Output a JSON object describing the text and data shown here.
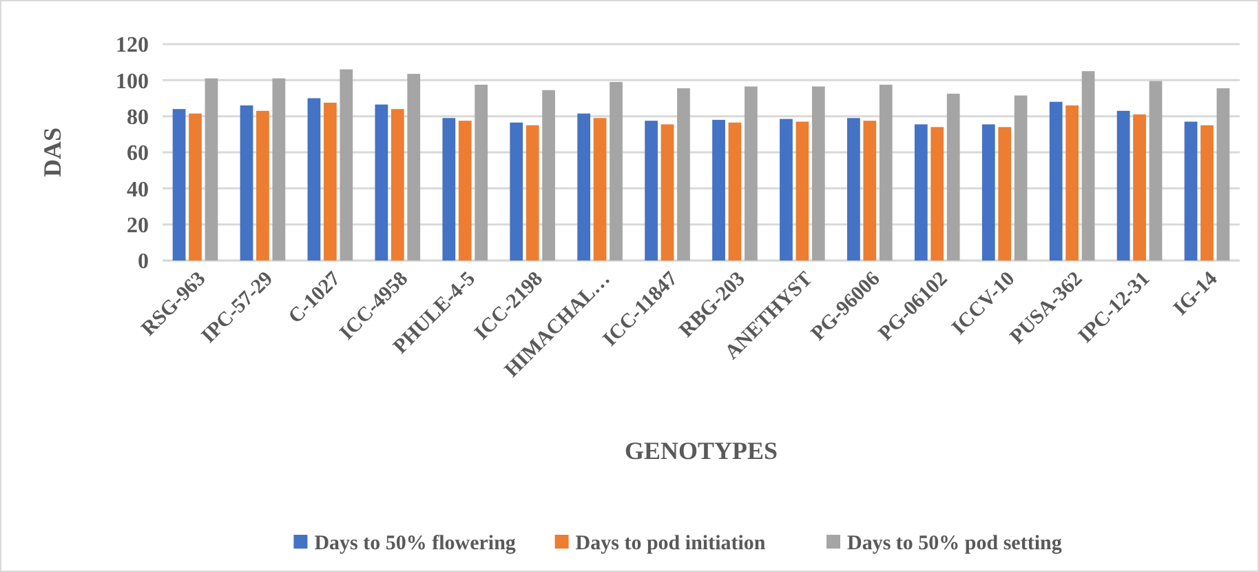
{
  "chart_data": {
    "type": "bar",
    "xlabel": "GENOTYPES",
    "ylabel": "DAS",
    "categories": [
      "RSG-963",
      "IPC-57-29",
      "C-1027",
      "ICC-4958",
      "PHULE-4-5",
      "ICC-2198",
      "HIMACHAL…",
      "ICC-11847",
      "RBG-203",
      "ANETHYST",
      "PG-96006",
      "PG-06102",
      "ICCV-10",
      "PUSA-362",
      "IPC-12-31",
      "IG-14"
    ],
    "series": [
      {
        "name": "Days to 50% flowering",
        "color": "#4472c4",
        "values": [
          84,
          86,
          90,
          86.5,
          79,
          76.5,
          81.5,
          77.5,
          78,
          78.5,
          79,
          75.5,
          75.5,
          88,
          83,
          77
        ]
      },
      {
        "name": "Days to pod initiation",
        "color": "#ed7d31",
        "values": [
          81.5,
          83,
          87.5,
          84,
          77.5,
          75,
          79,
          75.5,
          76.5,
          77,
          77.5,
          74,
          74,
          86,
          81,
          75
        ]
      },
      {
        "name": "Days to 50% pod setting",
        "color": "#a5a5a5",
        "values": [
          101,
          101,
          106,
          103.5,
          97.5,
          94.5,
          99,
          95.5,
          96.5,
          96.5,
          97.5,
          92.5,
          91.5,
          105,
          99.5,
          95.5
        ]
      }
    ],
    "ylim": [
      0,
      120
    ],
    "yticks": [
      0,
      20,
      40,
      60,
      80,
      100,
      120
    ],
    "grid": "y",
    "legend": "bottom"
  }
}
